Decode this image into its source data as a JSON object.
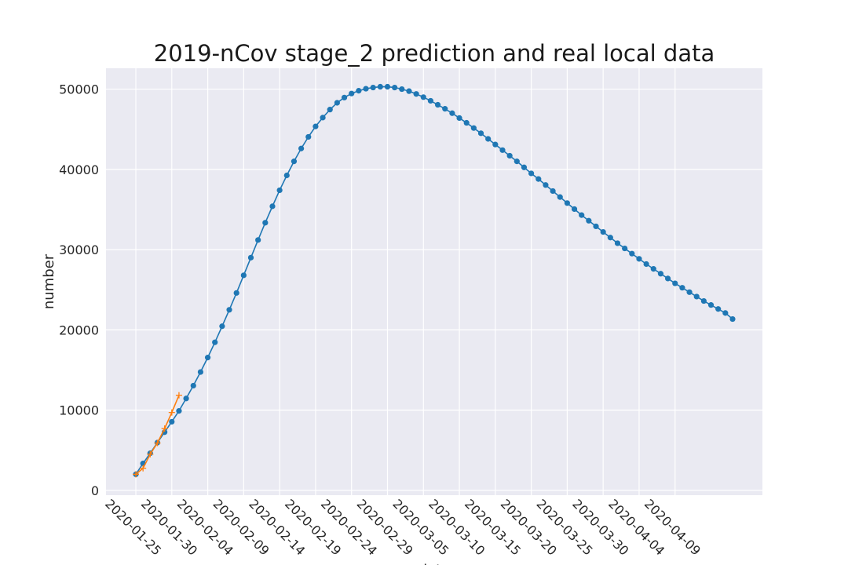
{
  "chart_data": {
    "type": "line",
    "title": "2019-nCov stage_2 prediction and real local data",
    "xlabel": "date",
    "ylabel": "number",
    "ylim": [
      -600,
      52600
    ],
    "grid": true,
    "x_tick_labels": [
      "2020-01-25",
      "2020-01-30",
      "2020-02-04",
      "2020-02-09",
      "2020-02-14",
      "2020-02-19",
      "2020-02-24",
      "2020-02-29",
      "2020-03-05",
      "2020-03-10",
      "2020-03-15",
      "2020-03-20",
      "2020-03-25",
      "2020-03-30",
      "2020-04-04",
      "2020-04-09"
    ],
    "y_ticks": [
      0,
      10000,
      20000,
      30000,
      40000,
      50000
    ],
    "y_tick_labels": [
      "0",
      "10000",
      "20000",
      "30000",
      "40000",
      "50000"
    ],
    "x_start": "2020-01-25",
    "series": [
      {
        "color": "#1f77b4",
        "marker": "circle",
        "values": [
          2000,
          3350,
          4620,
          5950,
          7250,
          8550,
          9900,
          11450,
          13050,
          14750,
          16550,
          18450,
          20450,
          22500,
          24600,
          26800,
          29000,
          31200,
          33350,
          35400,
          37400,
          39250,
          41000,
          42600,
          44050,
          45350,
          46450,
          47450,
          48300,
          48950,
          49450,
          49800,
          50050,
          50200,
          50300,
          50300,
          50200,
          50000,
          49750,
          49400,
          49000,
          48550,
          48050,
          47550,
          47000,
          46400,
          45800,
          45150,
          44500,
          43800,
          43100,
          42400,
          41700,
          41000,
          40250,
          39500,
          38800,
          38050,
          37300,
          36550,
          35800,
          35050,
          34300,
          33600,
          32900,
          32200,
          31500,
          30800,
          30150,
          29500,
          28850,
          28200,
          27600,
          27000,
          26400,
          25800,
          25250,
          24700,
          24150,
          23600,
          23100,
          22600,
          22100,
          21350
        ]
      },
      {
        "color": "#ff7f0e",
        "marker": "plus",
        "values": [
          2000,
          2750,
          4500,
          5900,
          7700,
          9700,
          11850
        ]
      }
    ]
  }
}
